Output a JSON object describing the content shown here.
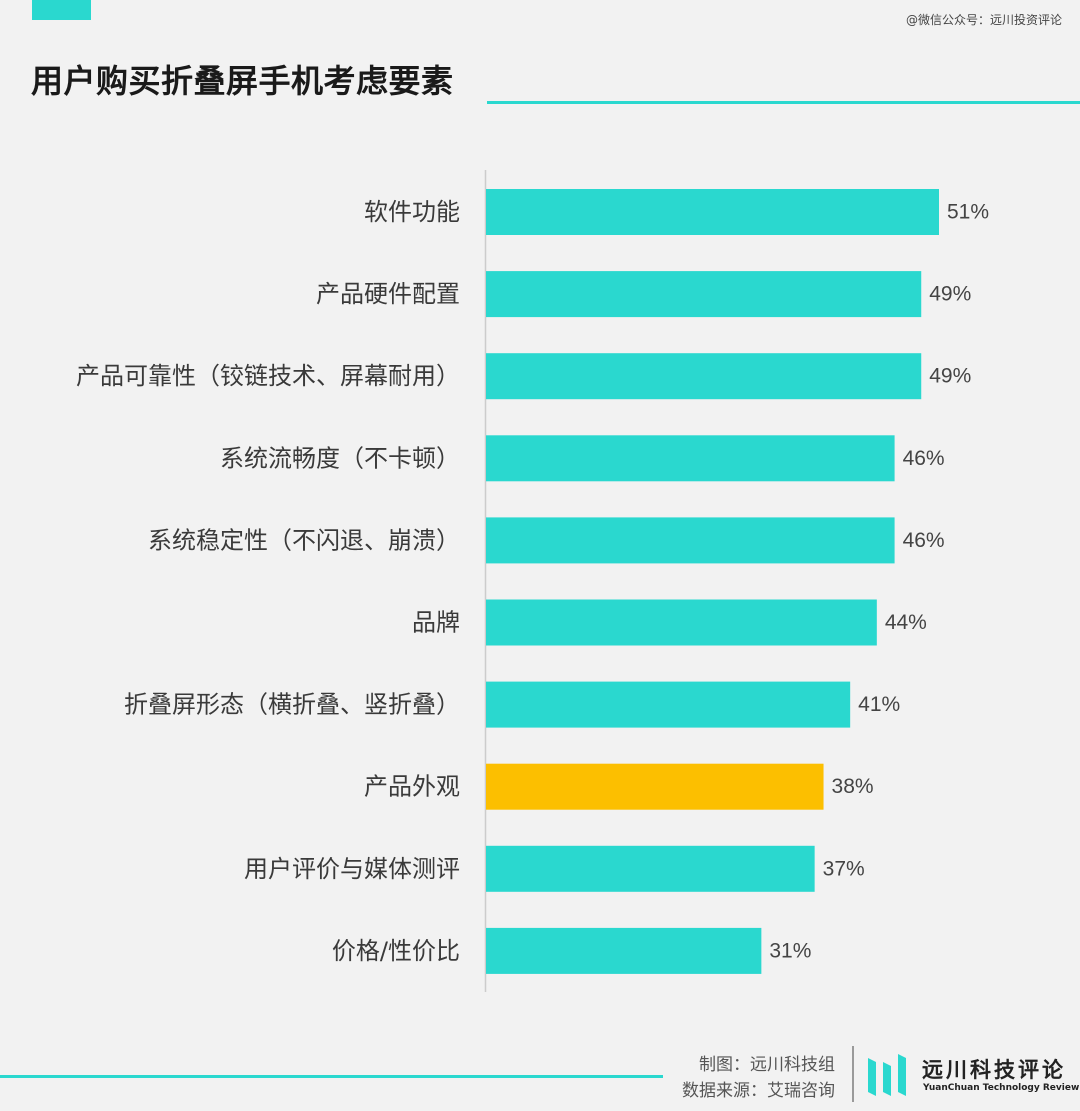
{
  "colors": {
    "accent": "#2ad8cf",
    "highlight": "#fcbf00"
  },
  "watermark": "@微信公众号：远川投资评论",
  "chart_data": {
    "type": "bar",
    "orientation": "horizontal",
    "title": "用户购买折叠屏手机考虑要素",
    "categories": [
      "软件功能",
      "产品硬件配置",
      "产品可靠性（铰链技术、屏幕耐用）",
      "系统流畅度（不卡顿）",
      "系统稳定性（不闪退、崩溃）",
      "品牌",
      "折叠屏形态（横折叠、竖折叠）",
      "产品外观",
      "用户评价与媒体测评",
      "价格/性价比"
    ],
    "values": [
      51,
      49,
      49,
      46,
      46,
      44,
      41,
      38,
      37,
      31
    ],
    "value_labels": [
      "51%",
      "49%",
      "49%",
      "46%",
      "46%",
      "44%",
      "41%",
      "38%",
      "37%",
      "31%"
    ],
    "highlight_index": 7,
    "unit": "%",
    "xlim": [
      0,
      60
    ],
    "grid": false,
    "legend": "none"
  },
  "footer": {
    "credit_maker": "制图：远川科技组",
    "credit_source": "数据来源：艾瑞咨询",
    "brand_name": "远川科技评论",
    "brand_sub": "YuanChuan Technology Review"
  }
}
